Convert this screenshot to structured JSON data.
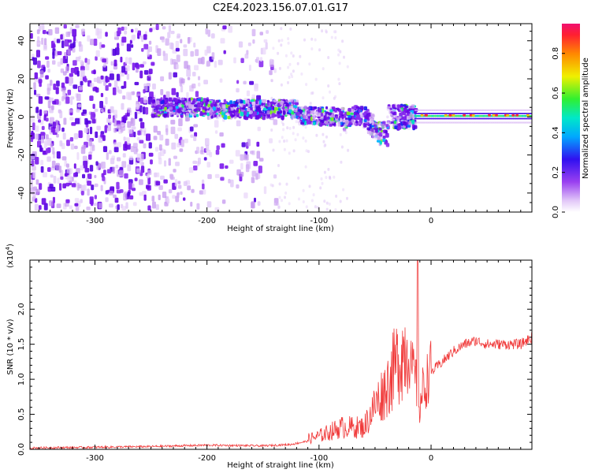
{
  "title": "C2E4.2023.156.07.01.G17",
  "colors": {
    "snr_line": "#f03a3a",
    "spectro_low": "#d8b8f4",
    "spectro_mid": "#6a10e8",
    "tone": "#00d0c0"
  },
  "chart_data": [
    {
      "type": "heatmap",
      "xlabel": "Height of straight line (km)",
      "ylabel": "Frequency (Hz)",
      "xlim": [
        -358,
        90
      ],
      "ylim": [
        -50,
        49
      ],
      "x_ticks": [
        -300,
        -200,
        -100,
        0
      ],
      "y_ticks": [
        -40,
        -20,
        0,
        20,
        40
      ],
      "colorbar": {
        "label": "Normalized spectral amplitude",
        "range": [
          0.0,
          0.95
        ],
        "ticks": [
          "0.0",
          "0.2",
          "0.4",
          "0.6",
          "0.8"
        ],
        "colormap": "purple-blue-cyan-green-yellow-red"
      },
      "features": {
        "tone_band_start_km": -250,
        "tone_frequency_hz": 0,
        "noise_region_km": [
          -358,
          -140
        ]
      }
    },
    {
      "type": "line",
      "xlabel": "Height of straight line (km)",
      "ylabel": "SNR (10 * v/v)",
      "y_multiplier": "(x10",
      "y_multiplier_exp": "4",
      "y_multiplier_close": ")",
      "xlim": [
        -358,
        90
      ],
      "ylim": [
        0,
        2.7
      ],
      "x_ticks": [
        -300,
        -200,
        -100,
        0
      ],
      "y_ticks": [
        "0.0",
        "0.5",
        "1.0",
        "1.5",
        "2.0"
      ],
      "series": [
        {
          "x": [
            -358,
            -300,
            -250,
            -200,
            -150,
            -125,
            -100,
            -80,
            -60,
            -50,
            -40,
            -30,
            -20,
            -15,
            -10,
            0,
            10,
            20,
            30,
            40,
            50,
            60,
            70,
            80,
            90
          ],
          "y": [
            0.02,
            0.03,
            0.04,
            0.06,
            0.05,
            0.07,
            0.15,
            0.25,
            0.25,
            0.5,
            0.7,
            1.0,
            1.2,
            1.0,
            0.6,
            1.1,
            1.25,
            1.4,
            1.5,
            1.55,
            1.5,
            1.5,
            1.5,
            1.5,
            1.6
          ]
        }
      ]
    }
  ]
}
